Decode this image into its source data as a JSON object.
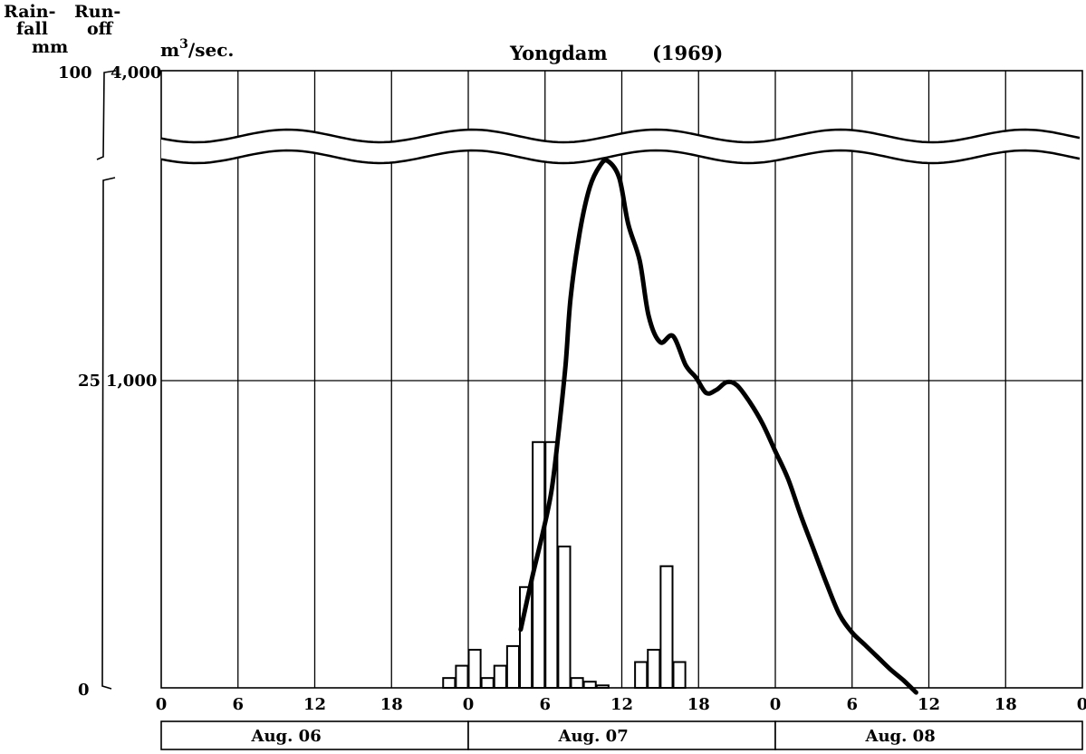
{
  "chart_data": {
    "type": "bar",
    "title": "Yongdam",
    "year": "(1969)",
    "left_axis_label": [
      "Rain-",
      "fall",
      "mm"
    ],
    "right_axis_label": [
      "Run-",
      "off"
    ],
    "runoff_unit_base": "m",
    "runoff_unit_exp": "3",
    "runoff_unit_suffix": "/sec.",
    "rain_ticks": [
      "100",
      "25",
      "0"
    ],
    "runoff_ticks": [
      "4,000",
      "1,000"
    ],
    "x_ticks": [
      "0",
      "6",
      "12",
      "18",
      "0",
      "6",
      "12",
      "18",
      "0",
      "6",
      "12",
      "18",
      "0"
    ],
    "date_labels": [
      "Aug.  06",
      "Aug.  07",
      "Aug.  08"
    ],
    "xlim_hours": [
      0,
      72
    ],
    "axis_break": "between 1,000 and 4,000 m3/sec (25 and 100 mm)",
    "grid": true,
    "series": [
      {
        "name": "Rainfall",
        "kind": "bars",
        "unit": "mm",
        "hours": [
          22,
          23,
          24,
          25,
          26,
          27,
          28,
          29,
          30,
          31,
          32,
          33,
          34,
          35,
          36,
          37,
          38,
          39,
          40
        ],
        "values": [
          0.8,
          1.8,
          3.1,
          0.8,
          1.8,
          3.4,
          8.2,
          20.0,
          20.0,
          11.5,
          0.8,
          0.5,
          0.2,
          0,
          0,
          2.1,
          3.1,
          9.9,
          2.1
        ]
      },
      {
        "name": "Runoff",
        "kind": "line",
        "unit": "m3/sec",
        "hours": [
          28.1,
          29.0,
          29.8,
          30.5,
          31.0,
          31.6,
          32.0,
          32.7,
          33.5,
          34.3,
          34.9,
          35.8,
          36.5,
          37.4,
          38.1,
          39.0,
          40.0,
          41.0,
          41.8,
          42.6,
          43.4,
          44.2,
          45.0,
          46.0,
          47.0,
          48.0,
          49.0,
          50.0,
          51.0,
          52.0,
          53.0,
          54.0,
          55.0,
          56.0,
          57.0,
          58.0,
          59.0
        ],
        "values": [
          190,
          360,
          500,
          640,
          810,
          1050,
          1270,
          1480,
          1630,
          1700,
          1715,
          1660,
          1510,
          1390,
          1210,
          1125,
          1145,
          1050,
          1010,
          960,
          970,
          995,
          985,
          930,
          860,
          770,
          680,
          560,
          450,
          340,
          240,
          180,
          140,
          100,
          60,
          25,
          -15
        ]
      }
    ]
  }
}
